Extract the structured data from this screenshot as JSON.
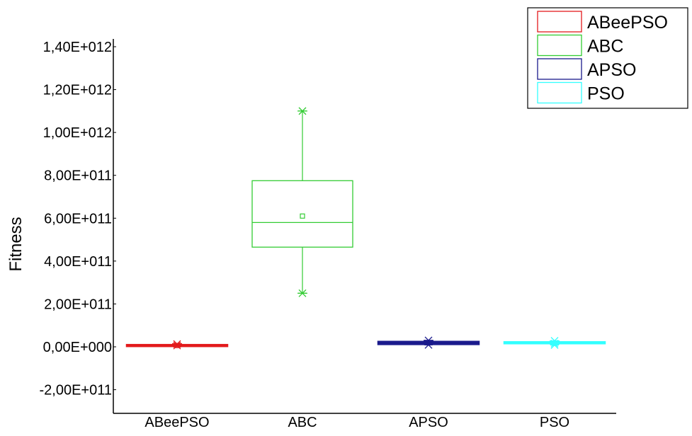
{
  "chart_data": {
    "type": "box",
    "ylabel": "Fitness",
    "xlabel": "",
    "ylim": [
      -300000000000.0,
      1420000000000.0
    ],
    "yticks": [
      {
        "value": -200000000000.0,
        "label": "-2,00E+011"
      },
      {
        "value": 0,
        "label": "0,00E+000"
      },
      {
        "value": 200000000000.0,
        "label": "2,00E+011"
      },
      {
        "value": 400000000000.0,
        "label": "4,00E+011"
      },
      {
        "value": 600000000000.0,
        "label": "6,00E+011"
      },
      {
        "value": 800000000000.0,
        "label": "8,00E+011"
      },
      {
        "value": 1000000000000.0,
        "label": "1,00E+012"
      },
      {
        "value": 1200000000000.0,
        "label": "1,20E+012"
      },
      {
        "value": 1400000000000.0,
        "label": "1,40E+012"
      }
    ],
    "categories": [
      "ABeePSO",
      "ABC",
      "APSO",
      "PSO"
    ],
    "series": [
      {
        "name": "ABeePSO",
        "color": "#e31a1c",
        "min": 2000000000.0,
        "q1": 2000000000.0,
        "median": 4000000000.0,
        "q3": 6000000000.0,
        "max": 15000000000.0,
        "mean": 6000000000.0,
        "outliers": [
          13000000000.0,
          6000000000.0
        ]
      },
      {
        "name": "ABC",
        "color": "#33cc33",
        "min": 250000000000.0,
        "q1": 465000000000.0,
        "median": 580000000000.0,
        "q3": 775000000000.0,
        "max": 1100000000000.0,
        "mean": 610000000000.0,
        "outliers": [
          250000000000.0,
          1100000000000.0
        ]
      },
      {
        "name": "APSO",
        "color": "#1a1a8c",
        "min": 12000000000.0,
        "q1": 12000000000.0,
        "median": 18000000000.0,
        "q3": 24000000000.0,
        "max": 30000000000.0,
        "mean": 18000000000.0,
        "outliers": [
          30000000000.0,
          9000000000.0
        ]
      },
      {
        "name": "PSO",
        "color": "#33ffff",
        "min": 12000000000.0,
        "q1": 13000000000.0,
        "median": 16000000000.0,
        "q3": 19000000000.0,
        "max": 28000000000.0,
        "mean": 16000000000.0,
        "outliers": [
          28000000000.0,
          8000000000.0,
          15000000000.0
        ]
      }
    ],
    "legend": {
      "placement": "top-right"
    },
    "grid": false
  }
}
